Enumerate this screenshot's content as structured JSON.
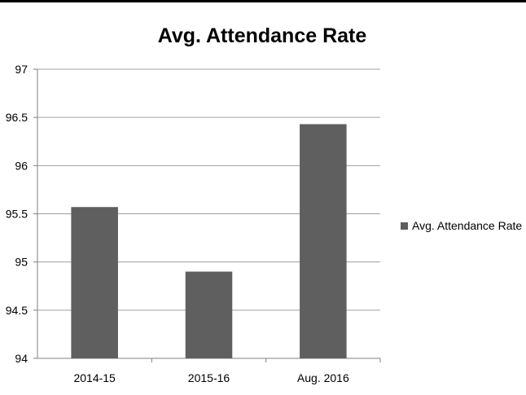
{
  "chart_data": {
    "type": "bar",
    "title": "Avg. Attendance Rate",
    "categories": [
      "2014-15",
      "2015-16",
      "Aug. 2016"
    ],
    "series": [
      {
        "name": "Avg. Attendance Rate",
        "values": [
          95.57,
          94.9,
          96.43
        ],
        "color": "#5f5f5f"
      }
    ],
    "ylim": [
      94,
      97
    ],
    "yticks": [
      "94",
      "94.5",
      "95",
      "95.5",
      "96",
      "96.5",
      "97"
    ],
    "grid": true,
    "legend": "right",
    "colors": {
      "gridline": "#a0a0a0",
      "axis": "#808080"
    }
  }
}
